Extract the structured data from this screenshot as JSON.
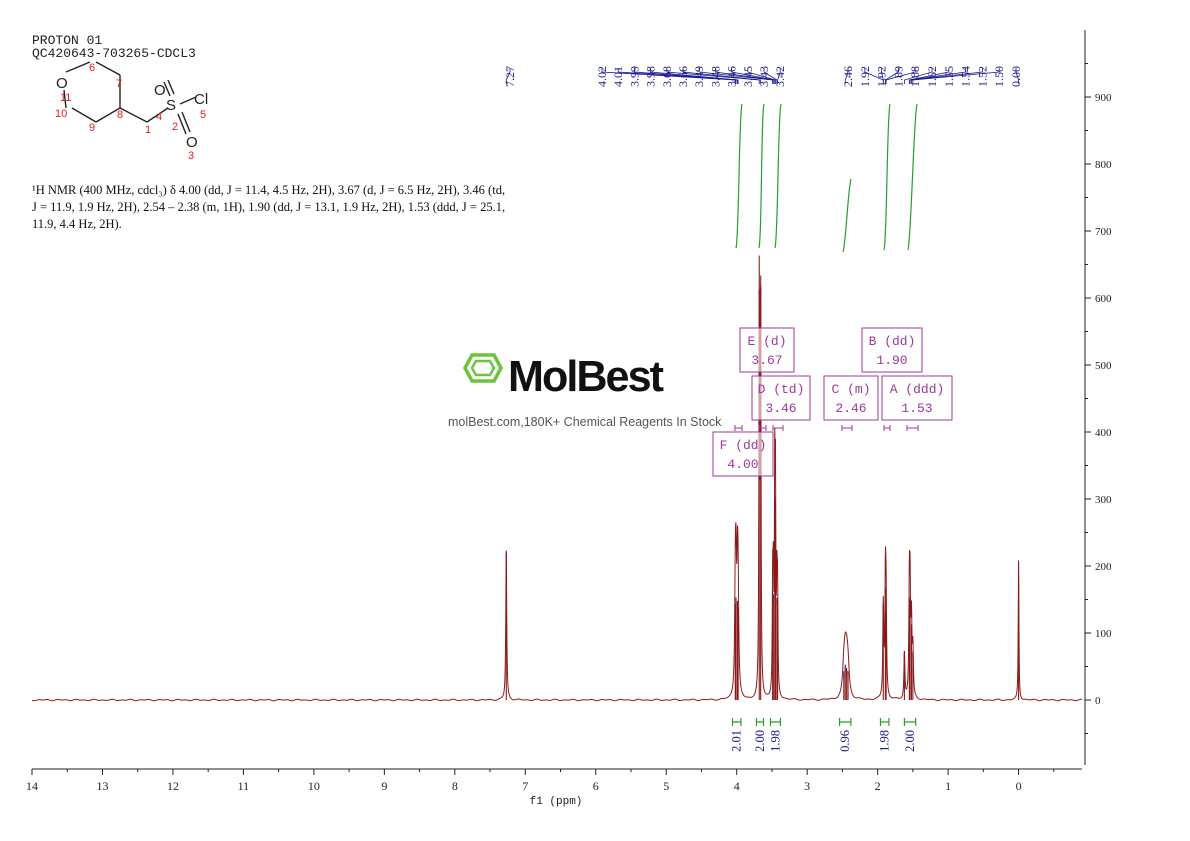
{
  "header": {
    "title": "PROTON 01",
    "sample_id": "QC420643-703265-CDCL3"
  },
  "structure": {
    "atoms": {
      "O_ring": "O",
      "S": "S",
      "Cl": "Cl",
      "O_top": "O",
      "O_bottom": "O"
    },
    "numbers": [
      "1",
      "2",
      "3",
      "4",
      "5",
      "6",
      "7",
      "8",
      "9",
      "10",
      "11"
    ]
  },
  "nmr_text": {
    "line1": "¹H NMR (400 MHz, cdcl₃) δ 4.00 (dd, J = 11.4, 4.5 Hz, 2H), 3.67 (d, J = 6.5 Hz, 2H), 3.46 (td,",
    "line2": "J = 11.9, 1.9 Hz, 2H), 2.54 – 2.38 (m, 1H), 1.90 (dd, J = 13.1, 1.9 Hz, 2H), 1.53 (ddd, J = 25.1,",
    "line3": "11.9, 4.4 Hz, 2H)."
  },
  "watermark": {
    "brand": "MolBest",
    "tagline": "molBest.com,180K+ Chemical Reagents In Stock"
  },
  "colors": {
    "spectrum": "#8b1a1a",
    "peak_labels": "#1a1a8c",
    "integral": "#2a9d2a",
    "multiplet_box": "#9b3a9b",
    "structure_numbers": "#e0201b",
    "brand": "#6ac43a"
  },
  "chart_data": {
    "type": "line",
    "xlabel": "f1 (ppm)",
    "xlim": [
      14,
      -0.9
    ],
    "x_ticks": [
      14,
      13,
      12,
      11,
      10,
      9,
      8,
      7,
      6,
      5,
      4,
      3,
      2,
      1,
      0
    ],
    "ylim": [
      -100,
      950
    ],
    "y_ticks": [
      900,
      800,
      700,
      600,
      500,
      400,
      300,
      200,
      100,
      0
    ],
    "grid": false,
    "peaks": [
      {
        "ppm": 7.27,
        "height": 220,
        "width": 0.008
      },
      {
        "ppm": 4.02,
        "height": 140,
        "width": 0.01
      },
      {
        "ppm": 4.01,
        "height": 150,
        "width": 0.01
      },
      {
        "ppm": 3.99,
        "height": 145,
        "width": 0.01
      },
      {
        "ppm": 3.98,
        "height": 135,
        "width": 0.01
      },
      {
        "ppm": 3.68,
        "height": 610,
        "width": 0.006
      },
      {
        "ppm": 3.66,
        "height": 615,
        "width": 0.006
      },
      {
        "ppm": 3.49,
        "height": 160,
        "width": 0.006
      },
      {
        "ppm": 3.48,
        "height": 155,
        "width": 0.006
      },
      {
        "ppm": 3.46,
        "height": 300,
        "width": 0.006
      },
      {
        "ppm": 3.45,
        "height": 290,
        "width": 0.006
      },
      {
        "ppm": 3.43,
        "height": 150,
        "width": 0.006
      },
      {
        "ppm": 3.42,
        "height": 145,
        "width": 0.006
      },
      {
        "ppm": 2.48,
        "height": 40,
        "width": 0.02
      },
      {
        "ppm": 2.46,
        "height": 50,
        "width": 0.02
      },
      {
        "ppm": 2.44,
        "height": 45,
        "width": 0.02
      },
      {
        "ppm": 2.42,
        "height": 40,
        "width": 0.02
      },
      {
        "ppm": 1.92,
        "height": 140,
        "width": 0.008
      },
      {
        "ppm": 1.89,
        "height": 165,
        "width": 0.008
      },
      {
        "ppm": 1.88,
        "height": 130,
        "width": 0.008
      },
      {
        "ppm": 1.62,
        "height": 70,
        "width": 0.008
      },
      {
        "ppm": 1.55,
        "height": 150,
        "width": 0.008
      },
      {
        "ppm": 1.54,
        "height": 140,
        "width": 0.008
      },
      {
        "ppm": 1.52,
        "height": 110,
        "width": 0.008
      },
      {
        "ppm": 1.5,
        "height": 70,
        "width": 0.008
      },
      {
        "ppm": 0.0,
        "height": 205,
        "width": 0.006
      }
    ],
    "peak_labels": {
      "group1": [
        "7.27"
      ],
      "group2": [
        "4.02",
        "4.01",
        "3.99",
        "3.98",
        "3.68",
        "3.66",
        "3.49",
        "3.48",
        "3.46",
        "3.45",
        "3.43",
        "3.42"
      ],
      "group3": [
        "2.46",
        "1.92",
        "1.92",
        "1.89",
        "1.88",
        "1.62",
        "1.55",
        "1.54",
        "1.52",
        "1.50",
        "0.00"
      ]
    },
    "multiplets": [
      {
        "letter": "E",
        "mult": "(d)",
        "shift": "3.67"
      },
      {
        "letter": "B",
        "mult": "(dd)",
        "shift": "1.90"
      },
      {
        "letter": "D",
        "mult": "(td)",
        "shift": "3.46"
      },
      {
        "letter": "C",
        "mult": "(m)",
        "shift": "2.46"
      },
      {
        "letter": "A",
        "mult": "(ddd)",
        "shift": "1.53"
      },
      {
        "letter": "F",
        "mult": "(dd)",
        "shift": "4.00"
      }
    ],
    "integrals": [
      {
        "from": 4.06,
        "to": 3.94,
        "value": "2.01"
      },
      {
        "from": 3.72,
        "to": 3.62,
        "value": "2.00"
      },
      {
        "from": 3.52,
        "to": 3.38,
        "value": "1.98"
      },
      {
        "from": 2.54,
        "to": 2.38,
        "value": "0.96"
      },
      {
        "from": 1.96,
        "to": 1.84,
        "value": "1.98"
      },
      {
        "from": 1.62,
        "to": 1.46,
        "value": "2.00"
      }
    ]
  }
}
